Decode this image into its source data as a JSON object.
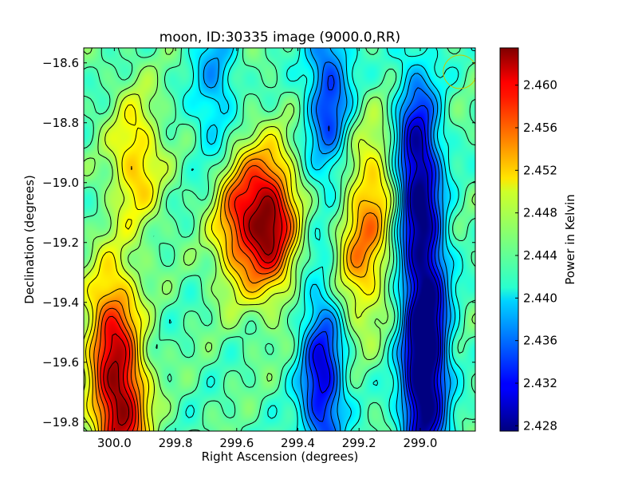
{
  "chart_data": {
    "type": "heatmap",
    "title": "moon, ID:30335 image (9000.0,RR)",
    "xlabel": "Right Ascension (degrees)",
    "ylabel": "Declination (degrees)",
    "xlim": [
      300.1,
      298.82
    ],
    "ylim": [
      -19.83,
      -18.55
    ],
    "x_ticks": [
      300.0,
      299.8,
      299.6,
      299.4,
      299.2,
      299.0
    ],
    "x_tick_labels": [
      "300.0",
      "299.8",
      "299.6",
      "299.4",
      "299.2",
      "299.0"
    ],
    "y_ticks": [
      -18.6,
      -18.8,
      -19.0,
      -19.2,
      -19.4,
      -19.6,
      -19.8
    ],
    "y_tick_labels": [
      "−18.6",
      "−18.8",
      "−19.0",
      "−19.2",
      "−19.4",
      "−19.6",
      "−19.8"
    ],
    "colorbar": {
      "label": "Power in Kelvin",
      "colormap": "jet",
      "range": [
        2.4275,
        2.4635
      ],
      "ticks": [
        2.428,
        2.432,
        2.436,
        2.44,
        2.444,
        2.448,
        2.452,
        2.456,
        2.46
      ],
      "tick_labels": [
        "2.428",
        "2.432",
        "2.436",
        "2.440",
        "2.444",
        "2.448",
        "2.452",
        "2.456",
        "2.460"
      ]
    },
    "features": [
      {
        "ra": 299.49,
        "dec": -19.13,
        "value": 2.462,
        "kind": "peak"
      },
      {
        "ra": 299.98,
        "dec": -19.78,
        "value": 2.461,
        "kind": "peak"
      },
      {
        "ra": 300.01,
        "dec": -19.48,
        "value": 2.456,
        "kind": "peak"
      },
      {
        "ra": 299.93,
        "dec": -18.93,
        "value": 2.452,
        "kind": "peak"
      },
      {
        "ra": 299.6,
        "dec": -19.12,
        "value": 2.455,
        "kind": "peak"
      },
      {
        "ra": 299.2,
        "dec": -19.27,
        "value": 2.452,
        "kind": "peak"
      },
      {
        "ra": 299.15,
        "dec": -19.02,
        "value": 2.451,
        "kind": "peak"
      },
      {
        "ra": 299.01,
        "dec": -18.95,
        "value": 2.4285,
        "kind": "trough"
      },
      {
        "ra": 298.98,
        "dec": -19.4,
        "value": 2.432,
        "kind": "trough"
      },
      {
        "ra": 298.99,
        "dec": -19.72,
        "value": 2.4295,
        "kind": "trough"
      },
      {
        "ra": 299.32,
        "dec": -19.66,
        "value": 2.431,
        "kind": "trough"
      },
      {
        "ra": 299.3,
        "dec": -18.7,
        "value": 2.434,
        "kind": "trough"
      },
      {
        "ra": 299.67,
        "dec": -18.68,
        "value": 2.438,
        "kind": "trough"
      }
    ],
    "beam_marker": {
      "ra": 298.87,
      "dec": -18.63,
      "color": "#c8c800"
    }
  }
}
